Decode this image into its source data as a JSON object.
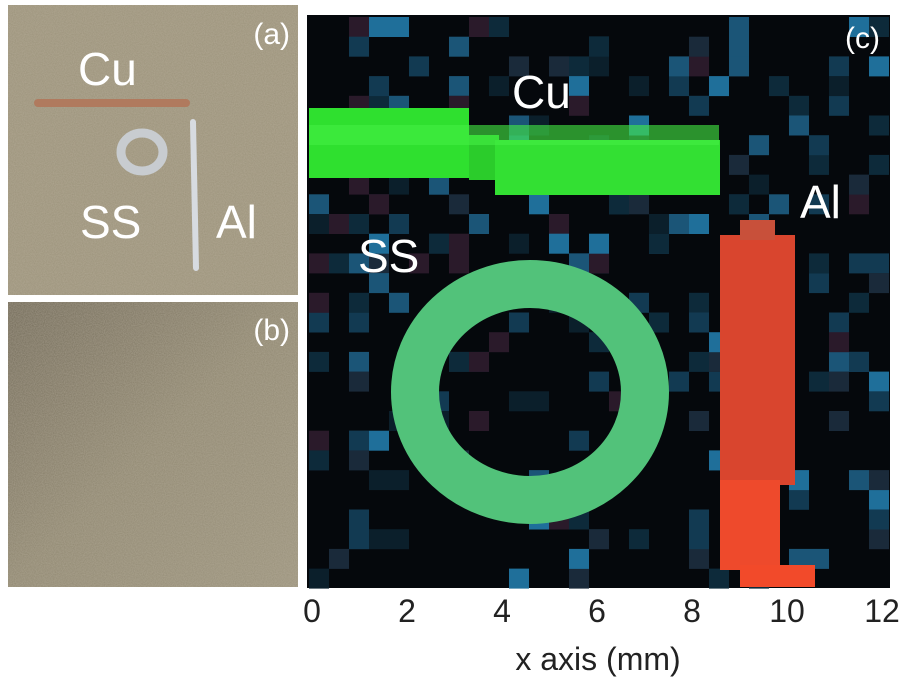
{
  "photos": [
    {
      "panel_label": "(a)",
      "annotations": [
        "Cu",
        "SS",
        "Al"
      ]
    },
    {
      "panel_label": "(b)"
    }
  ],
  "chart_data": {
    "type": "image",
    "panel_label": "(c)",
    "annotations": [
      "Cu",
      "SS",
      "Al"
    ],
    "xlabel": "x axis (mm)",
    "xlim": [
      0,
      12
    ],
    "xticks": [
      0,
      2,
      4,
      6,
      8,
      10,
      12
    ]
  }
}
